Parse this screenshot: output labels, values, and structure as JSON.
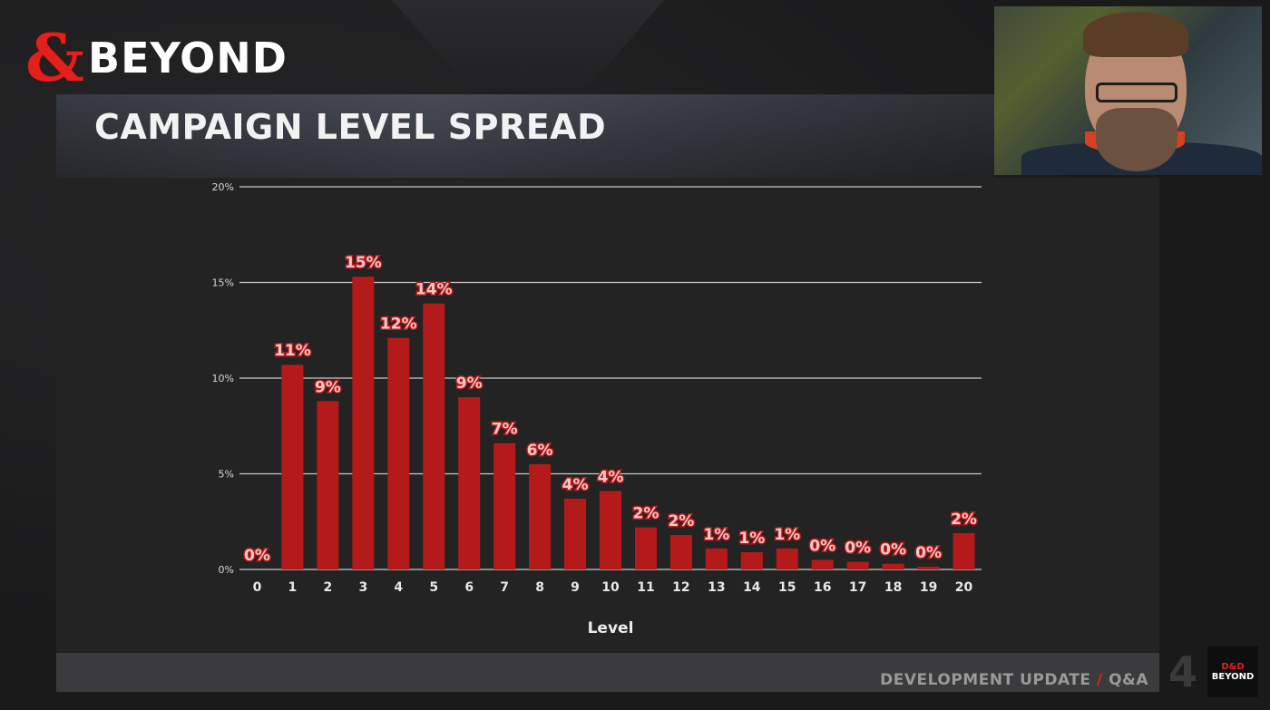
{
  "brand": {
    "amp_symbol": "&",
    "wordmark": "BEYOND"
  },
  "slide": {
    "title": "CAMPAIGN LEVEL SPREAD"
  },
  "footer": {
    "part1": "DEVELOPMENT UPDATE",
    "slash": "/",
    "part2": "Q&A"
  },
  "mini_logo": {
    "amp": "D&D",
    "text": "BEYOND"
  },
  "decoration": {
    "big_number": "4"
  },
  "colors": {
    "bar": "#b51a1a",
    "label_fill": "#f4c7c7",
    "label_stroke": "#b51a1a",
    "grid": "#c9c9c9",
    "accent": "#e3201b"
  },
  "chart_data": {
    "type": "bar",
    "xlabel": "Level",
    "ylabel": "",
    "ylim": [
      0,
      20
    ],
    "yticks": [
      {
        "value": 0,
        "label": "0%"
      },
      {
        "value": 5,
        "label": "5%"
      },
      {
        "value": 10,
        "label": "10%"
      },
      {
        "value": 15,
        "label": "15%"
      },
      {
        "value": 20,
        "label": "20%"
      }
    ],
    "grid": true,
    "categories": [
      "0",
      "1",
      "2",
      "3",
      "4",
      "5",
      "6",
      "7",
      "8",
      "9",
      "10",
      "11",
      "12",
      "13",
      "14",
      "15",
      "16",
      "17",
      "18",
      "19",
      "20"
    ],
    "values": [
      0.0,
      10.7,
      8.8,
      15.3,
      12.1,
      13.9,
      9.0,
      6.6,
      5.5,
      3.7,
      4.1,
      2.2,
      1.8,
      1.1,
      0.9,
      1.1,
      0.5,
      0.4,
      0.3,
      0.15,
      1.9
    ],
    "data_labels": [
      "0%",
      "11%",
      "9%",
      "15%",
      "12%",
      "14%",
      "9%",
      "7%",
      "6%",
      "4%",
      "4%",
      "2%",
      "2%",
      "1%",
      "1%",
      "1%",
      "0%",
      "0%",
      "0%",
      "0%",
      "2%"
    ]
  }
}
